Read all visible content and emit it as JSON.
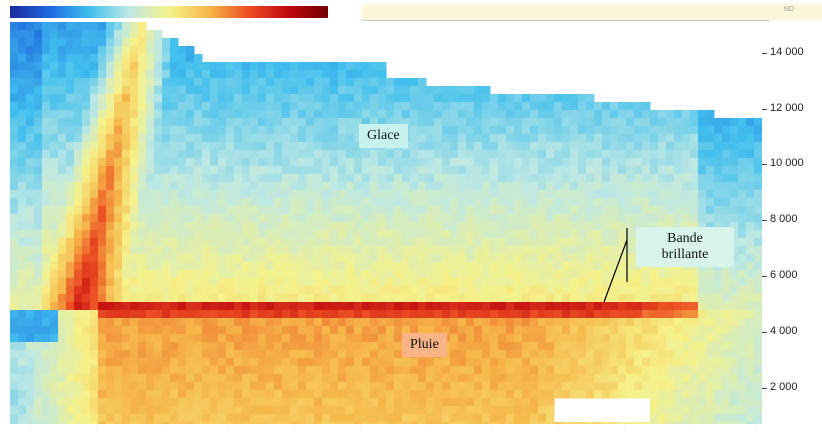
{
  "chart_data": {
    "type": "heatmap",
    "title": "",
    "xlabel": "",
    "ylabel": "",
    "y_ticks": [
      "2 000",
      "4 000",
      "6 000",
      "8 000",
      "10 000",
      "12 000",
      "14 000"
    ],
    "y_tick_values": [
      2000,
      4000,
      6000,
      8000,
      10000,
      12000,
      14000
    ],
    "ylim": [
      700,
      15100
    ],
    "colormap": [
      "#1b2a9e",
      "#1e6ae0",
      "#41bfee",
      "#bde8e4",
      "#f6f28a",
      "#f6b84a",
      "#ec4e23",
      "#c0090f",
      "#720000"
    ],
    "annotations": [
      {
        "label": "Glace"
      },
      {
        "label": "Bande brillante"
      },
      {
        "label": "Pluie"
      }
    ],
    "bright_band_altitude": 4850
  }
}
